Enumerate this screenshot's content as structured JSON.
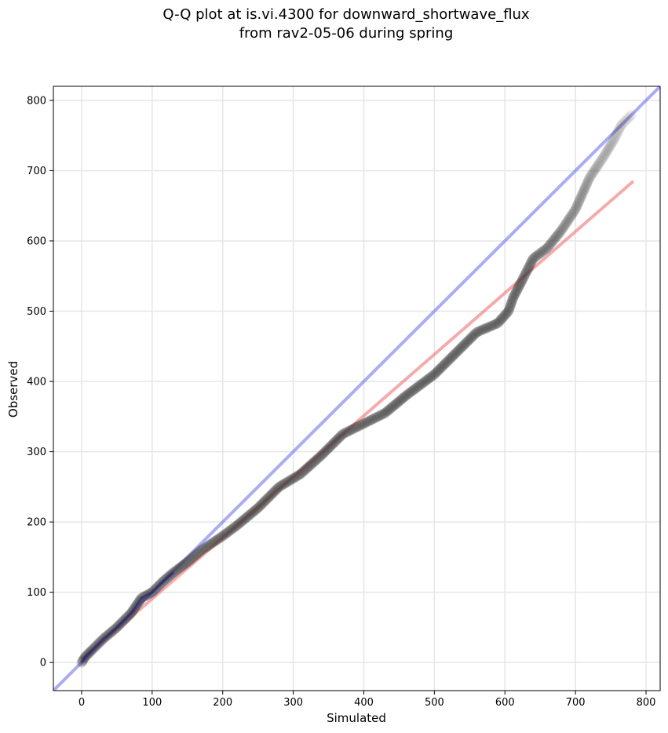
{
  "chart_data": {
    "type": "scatter",
    "title": "Q-Q plot at is.vi.4300 for downward_shortwave_flux",
    "subtitle": "from rav2-05-06 during spring",
    "xlabel": "Simulated",
    "ylabel": "Observed",
    "xlim": [
      -40,
      820
    ],
    "ylim": [
      -40,
      820
    ],
    "xticks": [
      0,
      100,
      200,
      300,
      400,
      500,
      600,
      700,
      800
    ],
    "yticks": [
      0,
      100,
      200,
      300,
      400,
      500,
      600,
      700,
      800
    ],
    "xtick_labels": [
      "0",
      "100",
      "200",
      "300",
      "400",
      "500",
      "600",
      "700",
      "800"
    ],
    "ytick_labels": [
      "0",
      "100",
      "200",
      "300",
      "400",
      "500",
      "600",
      "700",
      "800"
    ],
    "grid": true,
    "reference_lines": [
      {
        "kind": "one-to-one",
        "color": "#6666ee",
        "points": [
          [
            -40,
            -40
          ],
          [
            820,
            820
          ]
        ]
      },
      {
        "kind": "fit",
        "color": "#ee6666",
        "points": [
          [
            0,
            4
          ],
          [
            370,
            325
          ],
          [
            782,
            685
          ]
        ]
      }
    ],
    "quantile_curve": [
      [
        0,
        0
      ],
      [
        5,
        8
      ],
      [
        15,
        18
      ],
      [
        30,
        33
      ],
      [
        50,
        50
      ],
      [
        70,
        70
      ],
      [
        85,
        92
      ],
      [
        100,
        100
      ],
      [
        115,
        115
      ],
      [
        130,
        128
      ],
      [
        150,
        143
      ],
      [
        170,
        160
      ],
      [
        200,
        180
      ],
      [
        220,
        195
      ],
      [
        250,
        220
      ],
      [
        280,
        250
      ],
      [
        310,
        268
      ],
      [
        340,
        295
      ],
      [
        370,
        325
      ],
      [
        400,
        340
      ],
      [
        430,
        355
      ],
      [
        460,
        380
      ],
      [
        500,
        410
      ],
      [
        530,
        440
      ],
      [
        560,
        470
      ],
      [
        590,
        483
      ],
      [
        605,
        500
      ],
      [
        612,
        520
      ],
      [
        625,
        545
      ],
      [
        640,
        575
      ],
      [
        660,
        590
      ],
      [
        680,
        615
      ],
      [
        700,
        645
      ],
      [
        720,
        690
      ],
      [
        740,
        720
      ],
      [
        755,
        745
      ],
      [
        765,
        765
      ],
      [
        780,
        780
      ]
    ],
    "colors": {
      "points": "#333333",
      "one_to_one": "#6666ee",
      "fit": "#ee6666",
      "highlight": "#1a1a8c"
    }
  }
}
